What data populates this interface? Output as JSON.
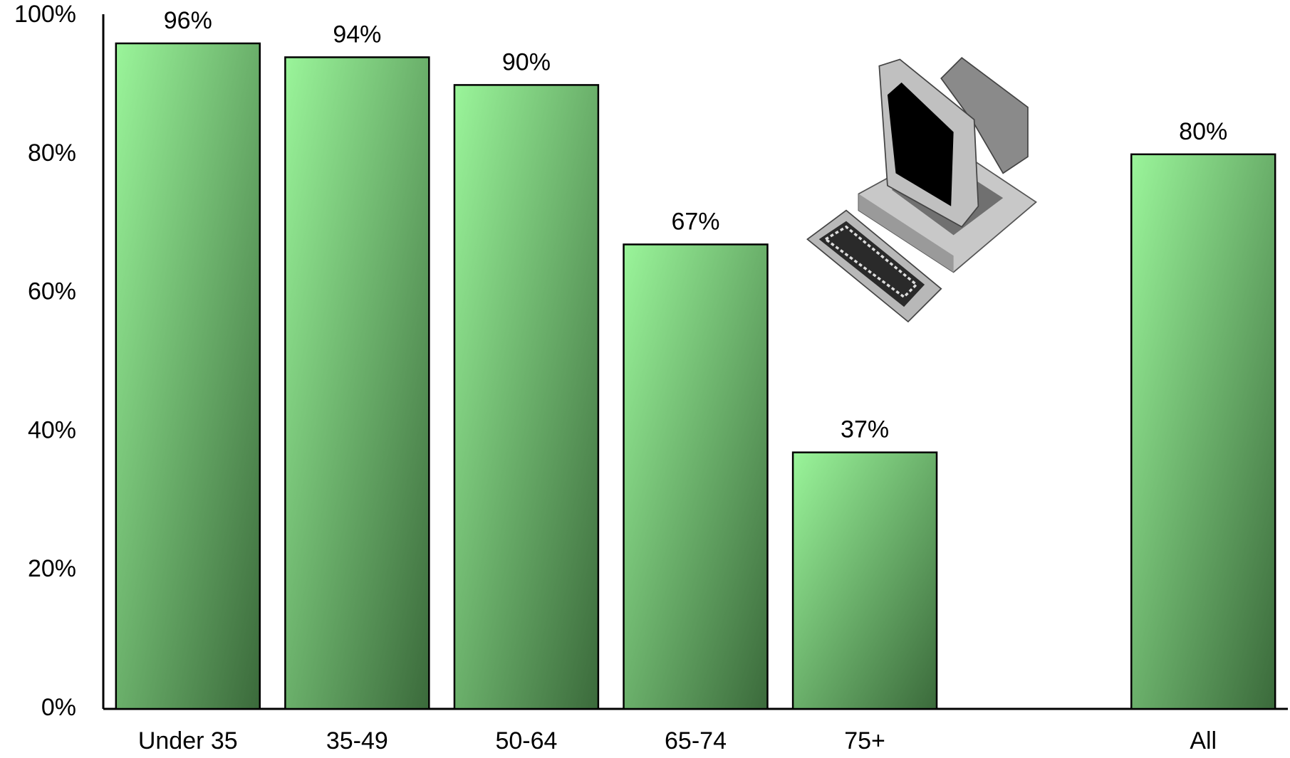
{
  "chart_data": {
    "type": "bar",
    "categories": [
      "Under 35",
      "35-49",
      "50-64",
      "65-74",
      "75+",
      null,
      "All"
    ],
    "values": [
      96,
      94,
      90,
      67,
      37,
      null,
      80
    ],
    "value_labels": [
      "96%",
      "94%",
      "90%",
      "67%",
      "37%",
      null,
      "80%"
    ],
    "ylim": [
      0,
      100
    ],
    "yticks": [
      {
        "value": 0,
        "label": "0%"
      },
      {
        "value": 20,
        "label": "20%"
      },
      {
        "value": 40,
        "label": "40%"
      },
      {
        "value": 60,
        "label": "60%"
      },
      {
        "value": 80,
        "label": "80%"
      },
      {
        "value": 100,
        "label": "100%"
      }
    ],
    "grid": false
  }
}
